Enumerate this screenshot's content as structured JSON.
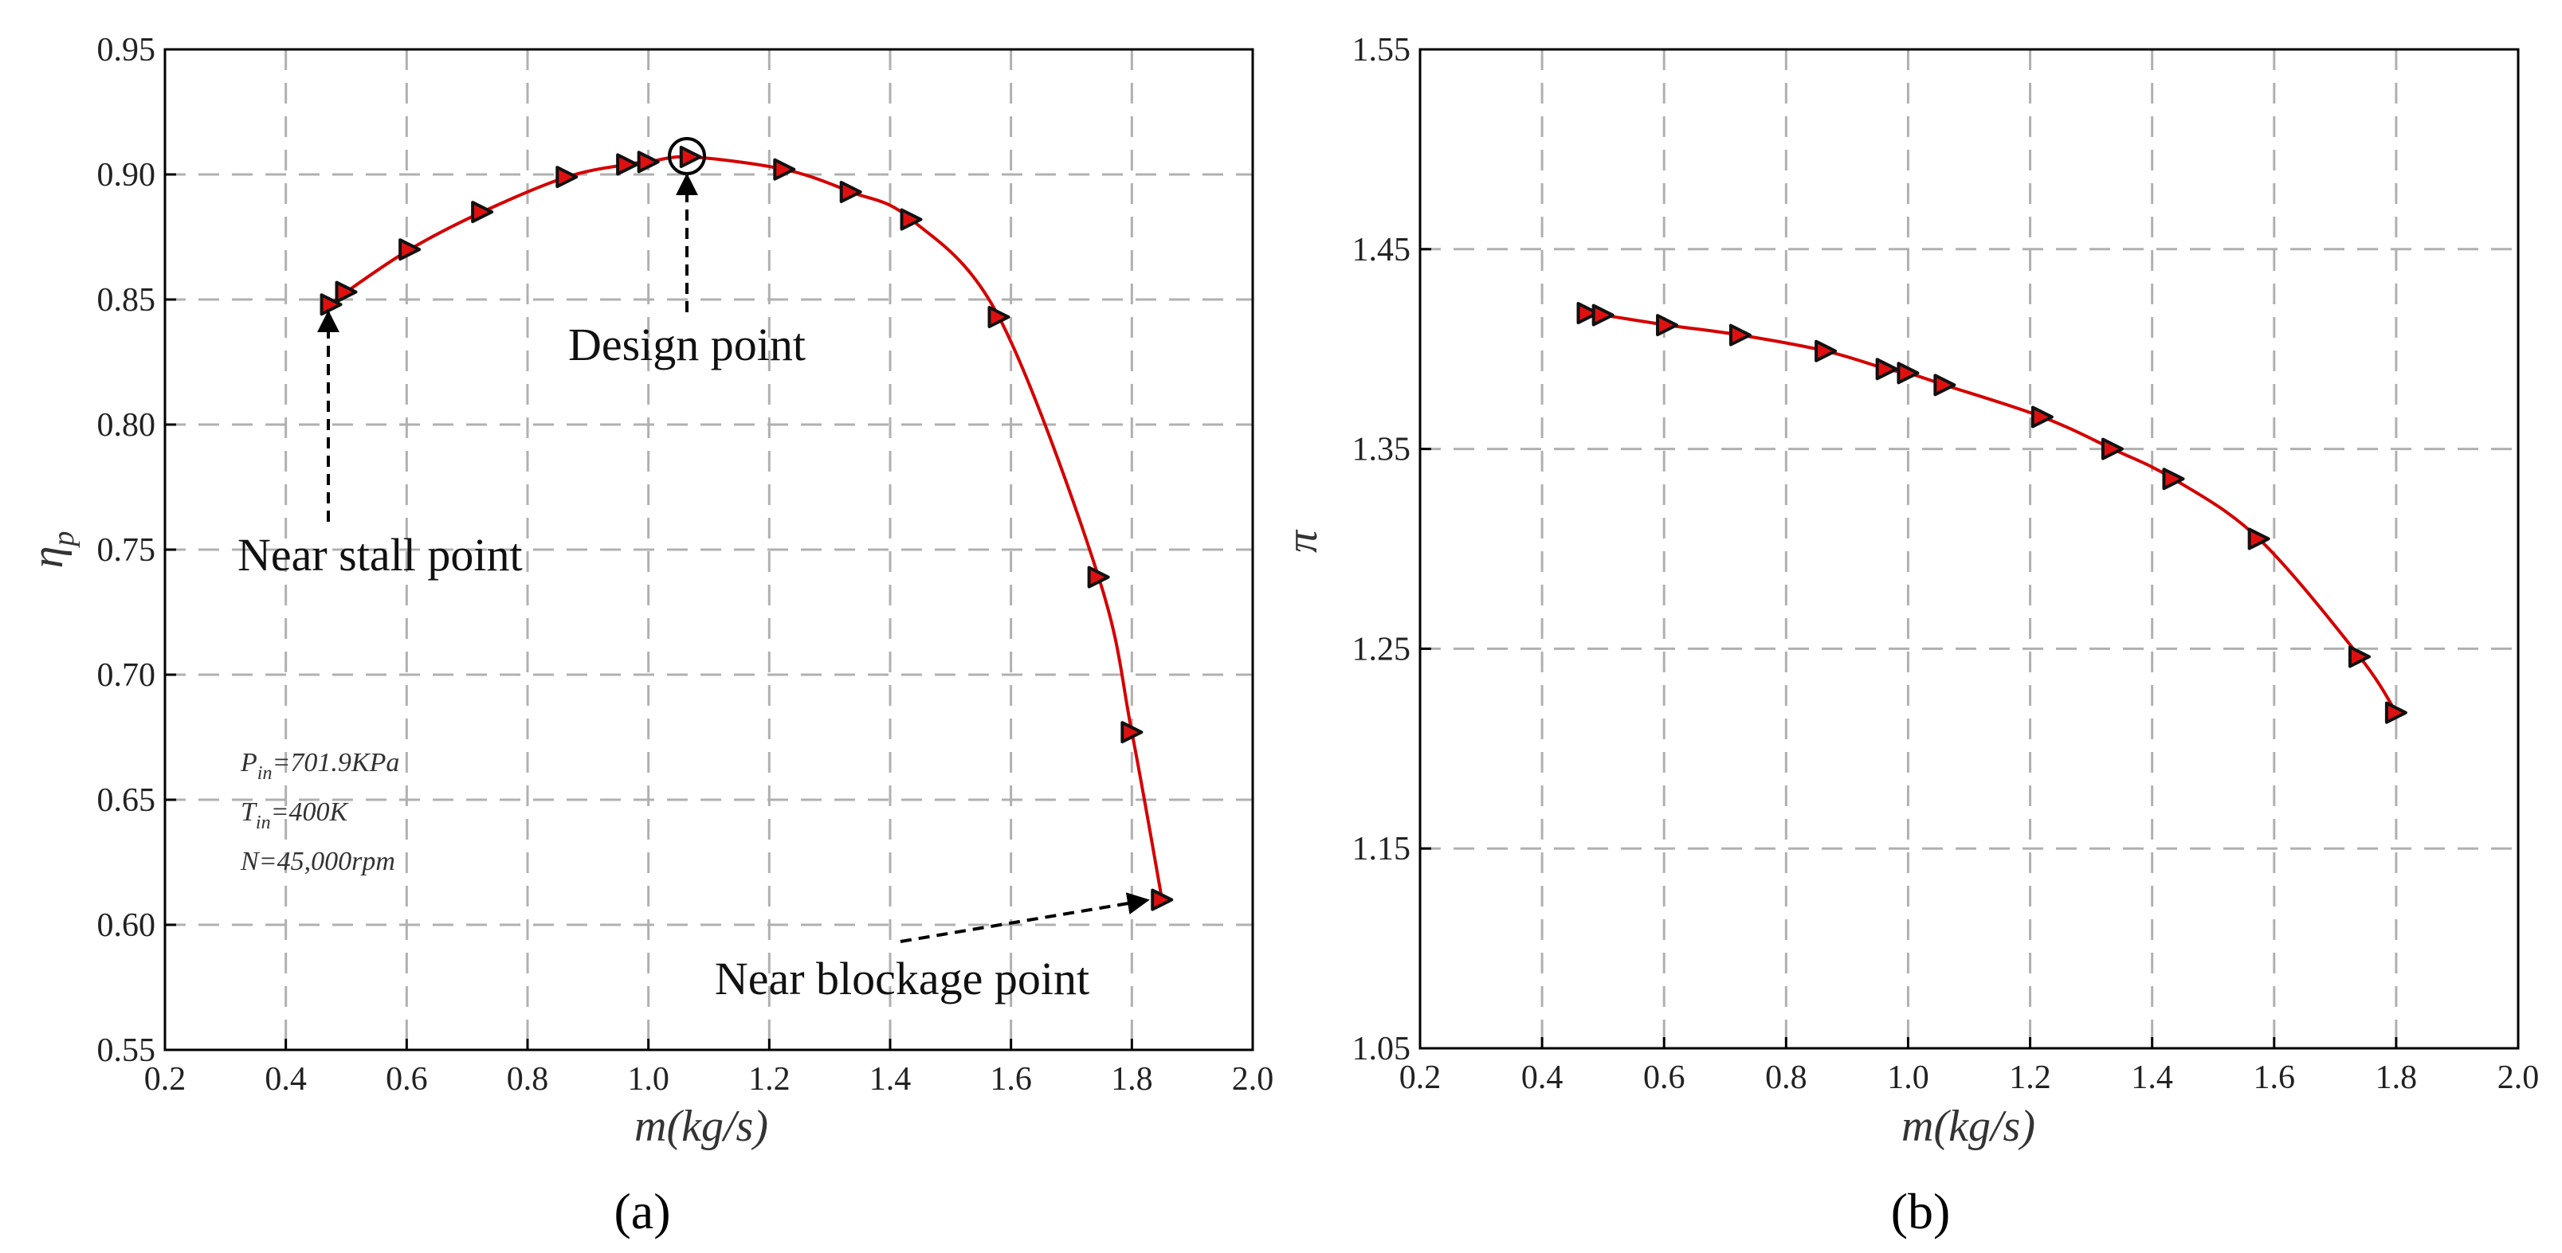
{
  "colors": {
    "line": "#d40000",
    "marker_fill": "#e01010",
    "grid": "#b0b0b0"
  },
  "chart_data": [
    {
      "type": "line",
      "panel_label": "(a)",
      "xlabel": "m(kg/s)",
      "ylabel_main": "η",
      "ylabel_sub": "p",
      "xlim": [
        0.2,
        2.0
      ],
      "ylim": [
        0.55,
        0.95
      ],
      "xticks": [
        "0.2",
        "0.4",
        "0.6",
        "0.8",
        "1.0",
        "1.2",
        "1.4",
        "1.6",
        "1.8",
        "2.0"
      ],
      "yticks": [
        "0.55",
        "0.60",
        "0.65",
        "0.70",
        "0.75",
        "0.80",
        "0.85",
        "0.90",
        "0.95"
      ],
      "grid": true,
      "x": [
        0.475,
        0.5,
        0.605,
        0.725,
        0.865,
        0.965,
        1.0,
        1.07,
        1.225,
        1.335,
        1.435,
        1.58,
        1.745,
        1.8,
        1.85
      ],
      "y": [
        0.848,
        0.853,
        0.87,
        0.885,
        0.899,
        0.904,
        0.905,
        0.907,
        0.902,
        0.893,
        0.882,
        0.843,
        0.739,
        0.677,
        0.61
      ],
      "annotations": {
        "design_point": "Design point",
        "near_stall": "Near stall point",
        "near_blockage": "Near blockage point"
      },
      "conditions": {
        "p_main": "P",
        "p_sub": "in",
        "p_val": "=701.9KPa",
        "t_main": "T",
        "t_sub": "in",
        "t_val": "=400K",
        "n_line": "N=45,000rpm"
      }
    },
    {
      "type": "line",
      "panel_label": "(b)",
      "xlabel": "m(kg/s)",
      "ylabel": "π",
      "xlim": [
        0.2,
        2.0
      ],
      "ylim": [
        1.05,
        1.55
      ],
      "xticks": [
        "0.2",
        "0.4",
        "0.6",
        "0.8",
        "1.0",
        "1.2",
        "1.4",
        "1.6",
        "1.8",
        "2.0"
      ],
      "yticks": [
        "1.05",
        "1.15",
        "1.25",
        "1.35",
        "1.45",
        "1.55"
      ],
      "grid": true,
      "x": [
        0.475,
        0.5,
        0.605,
        0.725,
        0.865,
        0.965,
        1.0,
        1.06,
        1.22,
        1.335,
        1.435,
        1.575,
        1.74,
        1.8
      ],
      "y": [
        1.418,
        1.417,
        1.412,
        1.407,
        1.399,
        1.39,
        1.388,
        1.382,
        1.366,
        1.35,
        1.335,
        1.305,
        1.246,
        1.218
      ]
    }
  ]
}
